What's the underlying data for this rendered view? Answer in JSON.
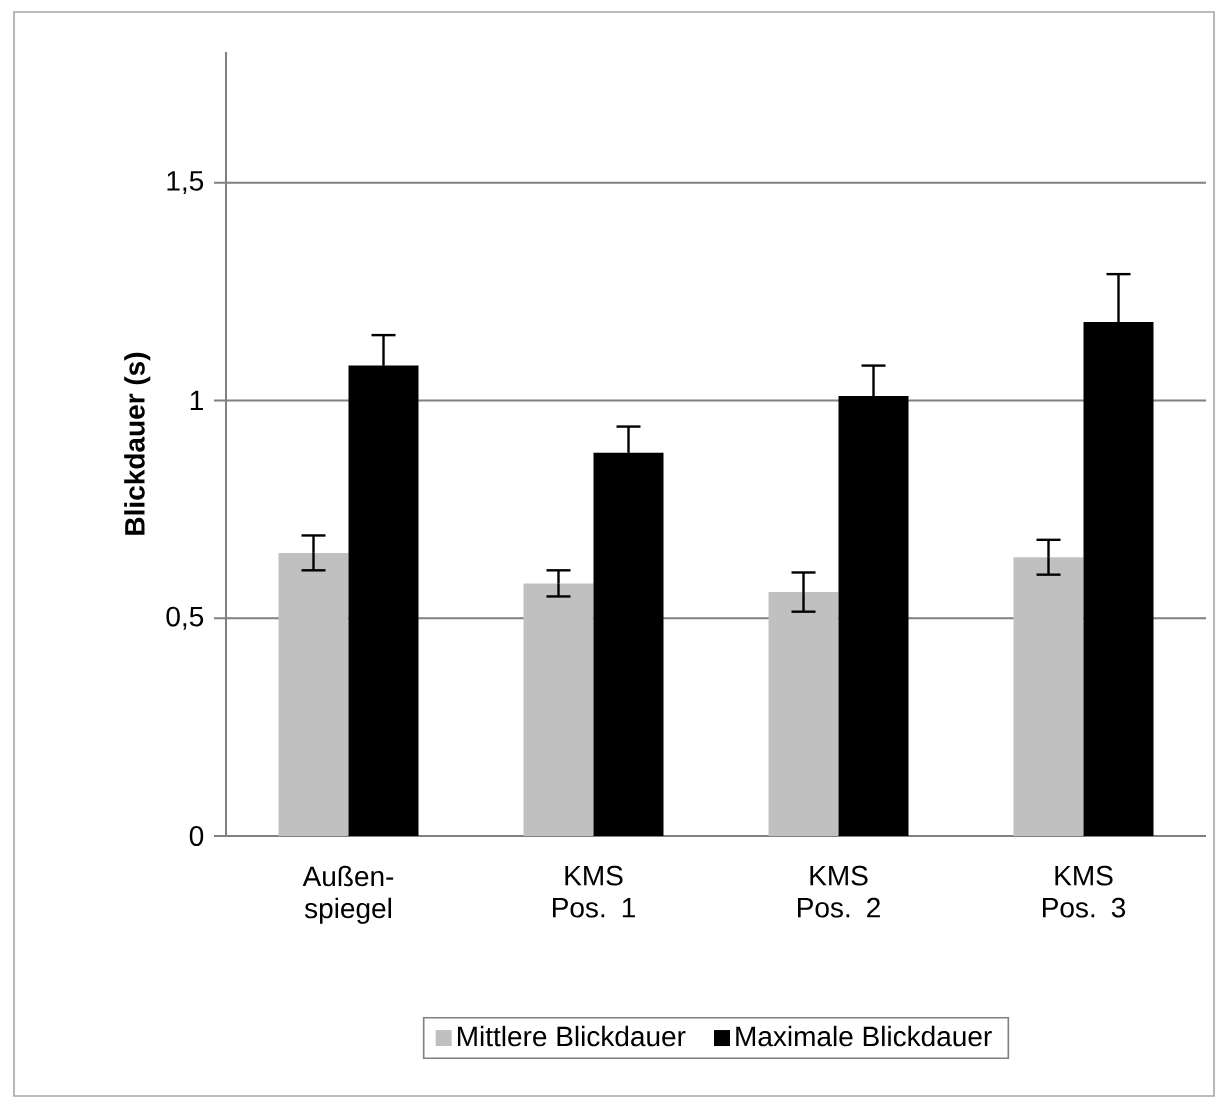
{
  "chart_data": {
    "type": "bar",
    "ylabel": "Blickdauer (s)",
    "categories": [
      "Außen-spiegel",
      "KMS Pos. 1",
      "KMS Pos. 2",
      "KMS Pos. 3"
    ],
    "series": [
      {
        "name": "Mittlere Blickdauer",
        "color": "#c0c0c0",
        "values": [
          0.65,
          0.58,
          0.56,
          0.64
        ],
        "errors": [
          0.04,
          0.03,
          0.045,
          0.04
        ]
      },
      {
        "name": "Maximale Blickdauer",
        "color": "#000000",
        "values": [
          1.08,
          0.88,
          1.01,
          1.18
        ],
        "errors": [
          0.07,
          0.06,
          0.07,
          0.11
        ]
      }
    ],
    "ylim": [
      0,
      1.8
    ],
    "yticks": [
      0,
      {
        "value": 0.5,
        "label": "0,5"
      },
      1,
      {
        "value": 1.5,
        "label": "1,5"
      }
    ],
    "grid": "y",
    "legend": "bottom"
  }
}
